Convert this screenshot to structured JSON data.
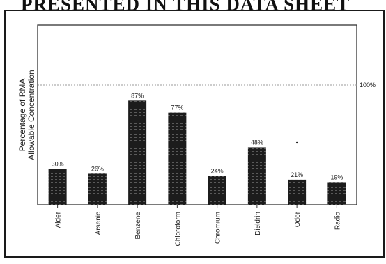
{
  "header": {
    "title": "PRESENTED IN THIS DATA SHEET"
  },
  "chart_data": {
    "type": "bar",
    "ylabel_line1": "Percentage of RMA",
    "ylabel_line2": "Allowable Concentration",
    "ylim": [
      0,
      150
    ],
    "reference_line": {
      "value": 100,
      "label": "100%"
    },
    "categories": [
      "Alder",
      "Arsenic",
      "Benzene",
      "Chloroform",
      "Chromium",
      "Dieldrin",
      "Odor",
      "Radio"
    ],
    "values": [
      30,
      26,
      87,
      77,
      24,
      48,
      21,
      19
    ],
    "value_labels": [
      "30%",
      "26%",
      "87%",
      "77%",
      "24%",
      "48%",
      "21%",
      "19%"
    ],
    "grid": false,
    "legend": "none",
    "colors": {
      "bar": "#1c1c1c",
      "reference": "#9a9a9a",
      "axis": "#333333"
    }
  }
}
